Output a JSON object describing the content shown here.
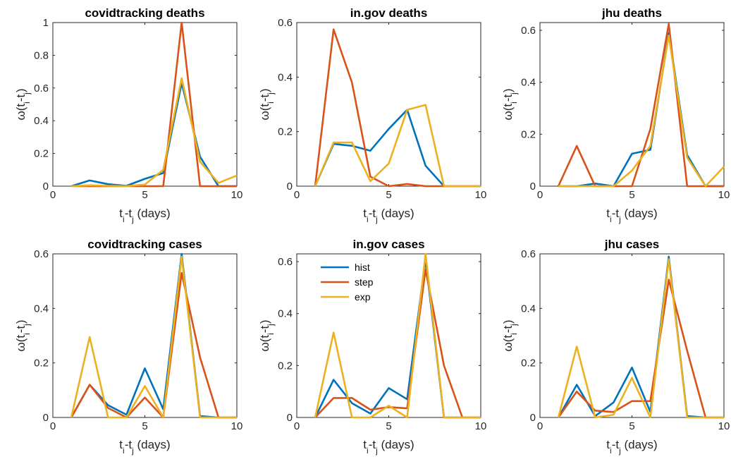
{
  "colors": {
    "hist": "#0072BD",
    "step": "#D95319",
    "exp": "#EDB120"
  },
  "legend": {
    "hist": "hist",
    "step": "step",
    "exp": "exp"
  },
  "chart_data": [
    {
      "type": "line",
      "title": "covidtracking deaths",
      "xlabel": "t_i-t_j (days)",
      "ylabel": "ω(t_i-t_j)",
      "xlim": [
        0,
        10
      ],
      "ylim": [
        0,
        1
      ],
      "xticks": [
        0,
        5,
        10
      ],
      "yticks": [
        0,
        0.2,
        0.4,
        0.6,
        0.8,
        1
      ],
      "x": [
        1,
        2,
        3,
        4,
        5,
        6,
        7,
        8,
        9,
        10
      ],
      "series": [
        {
          "name": "hist",
          "values": [
            0,
            0.035,
            0.012,
            0.002,
            0.045,
            0.08,
            0.63,
            0.18,
            0,
            0
          ]
        },
        {
          "name": "step",
          "values": [
            0,
            0,
            0,
            0,
            0,
            0,
            1.0,
            0,
            0,
            0
          ]
        },
        {
          "name": "exp",
          "values": [
            0,
            0.005,
            0.002,
            0,
            0.01,
            0.1,
            0.66,
            0.15,
            0.02,
            0.065
          ]
        }
      ]
    },
    {
      "type": "line",
      "title": "in.gov deaths",
      "xlabel": "t_i-t_j (days)",
      "ylabel": "ω(t_i-t_j)",
      "xlim": [
        0,
        10
      ],
      "ylim": [
        0,
        0.6
      ],
      "xticks": [
        0,
        5,
        10
      ],
      "yticks": [
        0,
        0.2,
        0.4,
        0.6
      ],
      "x": [
        1,
        2,
        3,
        4,
        5,
        6,
        7,
        8,
        9,
        10
      ],
      "series": [
        {
          "name": "hist",
          "values": [
            0,
            0.155,
            0.148,
            0.13,
            0.21,
            0.28,
            0.075,
            0,
            0,
            0
          ]
        },
        {
          "name": "step",
          "values": [
            0,
            0.575,
            0.38,
            0.035,
            0,
            0.008,
            0,
            0,
            0,
            0
          ]
        },
        {
          "name": "exp",
          "values": [
            0,
            0.16,
            0.16,
            0.018,
            0.083,
            0.28,
            0.298,
            0,
            0,
            0
          ]
        }
      ]
    },
    {
      "type": "line",
      "title": "jhu deaths",
      "xlabel": "t_i-t_j (days)",
      "ylabel": "ω(t_i-t_j)",
      "xlim": [
        0,
        10
      ],
      "ylim": [
        0,
        0.63
      ],
      "xticks": [
        0,
        5,
        10
      ],
      "yticks": [
        0,
        0.2,
        0.4,
        0.6
      ],
      "x": [
        1,
        2,
        3,
        4,
        5,
        6,
        7,
        8,
        9,
        10
      ],
      "series": [
        {
          "name": "hist",
          "values": [
            0,
            0,
            0.01,
            0,
            0.125,
            0.14,
            0.59,
            0.12,
            0,
            0
          ]
        },
        {
          "name": "step",
          "values": [
            0,
            0.155,
            0,
            0,
            0,
            0.22,
            0.625,
            0,
            0,
            0
          ]
        },
        {
          "name": "exp",
          "values": [
            0,
            0,
            0,
            0,
            0.06,
            0.155,
            0.58,
            0.11,
            0,
            0.075
          ]
        }
      ]
    },
    {
      "type": "line",
      "title": "covidtracking cases",
      "xlabel": "t_i-t_j (days)",
      "ylabel": "ω(t_i-t_j)",
      "xlim": [
        0,
        10
      ],
      "ylim": [
        0,
        0.6
      ],
      "xticks": [
        0,
        5,
        10
      ],
      "yticks": [
        0,
        0.2,
        0.4,
        0.6
      ],
      "x": [
        1,
        2,
        3,
        4,
        5,
        6,
        7,
        8,
        9,
        10
      ],
      "series": [
        {
          "name": "hist",
          "values": [
            0,
            0.12,
            0.045,
            0.01,
            0.18,
            0.03,
            0.6,
            0.005,
            0,
            0
          ]
        },
        {
          "name": "step",
          "values": [
            0,
            0.12,
            0.035,
            0,
            0.073,
            0,
            0.53,
            0.22,
            0,
            0
          ]
        },
        {
          "name": "exp",
          "values": [
            0,
            0.295,
            0,
            0,
            0.115,
            0,
            0.59,
            0,
            0,
            0
          ]
        }
      ]
    },
    {
      "type": "line",
      "title": "in.gov cases",
      "xlabel": "t_i-t_j (days)",
      "ylabel": "ω(t_i-t_j)",
      "xlim": [
        0,
        10
      ],
      "ylim": [
        0,
        0.63
      ],
      "xticks": [
        0,
        5,
        10
      ],
      "yticks": [
        0,
        0.2,
        0.4,
        0.6
      ],
      "legend_position": "top-left",
      "x": [
        1,
        2,
        3,
        4,
        5,
        6,
        7,
        8,
        9,
        10
      ],
      "series": [
        {
          "name": "hist",
          "values": [
            0,
            0.145,
            0.055,
            0.015,
            0.113,
            0.07,
            0.61,
            0,
            0,
            0
          ]
        },
        {
          "name": "step",
          "values": [
            0,
            0.075,
            0.075,
            0.03,
            0.04,
            0.035,
            0.57,
            0.2,
            0,
            0
          ]
        },
        {
          "name": "exp",
          "values": [
            0,
            0.327,
            0,
            0,
            0.045,
            0,
            0.63,
            0,
            0,
            0
          ]
        }
      ]
    },
    {
      "type": "line",
      "title": "jhu cases",
      "xlabel": "t_i-t_j (days)",
      "ylabel": "ω(t_i-t_j)",
      "xlim": [
        0,
        10
      ],
      "ylim": [
        0,
        0.6
      ],
      "xticks": [
        0,
        5,
        10
      ],
      "yticks": [
        0,
        0.2,
        0.4,
        0.6
      ],
      "x": [
        1,
        2,
        3,
        4,
        5,
        6,
        7,
        8,
        9,
        10
      ],
      "series": [
        {
          "name": "hist",
          "values": [
            0,
            0.12,
            0.005,
            0.055,
            0.183,
            0.02,
            0.59,
            0.005,
            0,
            0
          ]
        },
        {
          "name": "step",
          "values": [
            0,
            0.095,
            0.025,
            0.02,
            0.06,
            0.06,
            0.505,
            0.245,
            0,
            0
          ]
        },
        {
          "name": "exp",
          "values": [
            0,
            0.26,
            0,
            0.01,
            0.145,
            0,
            0.58,
            0,
            0,
            0
          ]
        }
      ]
    }
  ]
}
